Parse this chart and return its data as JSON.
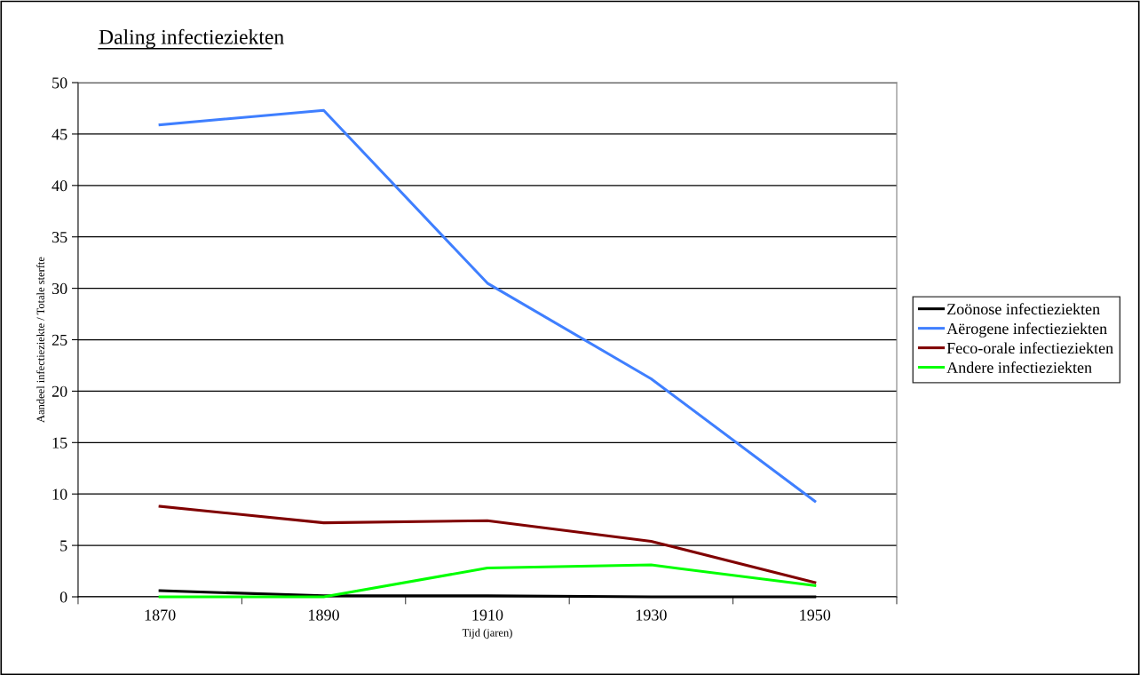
{
  "chart_data": {
    "type": "line",
    "title": "Daling infectieziekten",
    "xlabel": "Tijd (jaren)",
    "ylabel": "Aandeel infectieziekte / Totale sterfte",
    "categories": [
      "1870",
      "1890",
      "1910",
      "1930",
      "1950"
    ],
    "series": [
      {
        "name": "Zoönose infectieziekten",
        "color": "#000000",
        "values": [
          0.6,
          0.1,
          0.1,
          0,
          0
        ]
      },
      {
        "name": "Aërogene infectieziekten",
        "color": "#3f7fff",
        "values": [
          45.9,
          47.3,
          30.5,
          21.2,
          9.3
        ]
      },
      {
        "name": "Feco-orale infectieziekten",
        "color": "#800000",
        "values": [
          8.8,
          7.2,
          7.4,
          5.4,
          1.4
        ]
      },
      {
        "name": "Andere infectieziekten",
        "color": "#00ff00",
        "values": [
          0,
          0,
          2.8,
          3.1,
          1.1
        ]
      }
    ],
    "ylim": [
      0,
      50
    ],
    "yticks": [
      0,
      5,
      10,
      15,
      20,
      25,
      30,
      35,
      40,
      45,
      50
    ],
    "grid": "y",
    "legend": "right",
    "marker": "none",
    "line_style": "solid"
  }
}
